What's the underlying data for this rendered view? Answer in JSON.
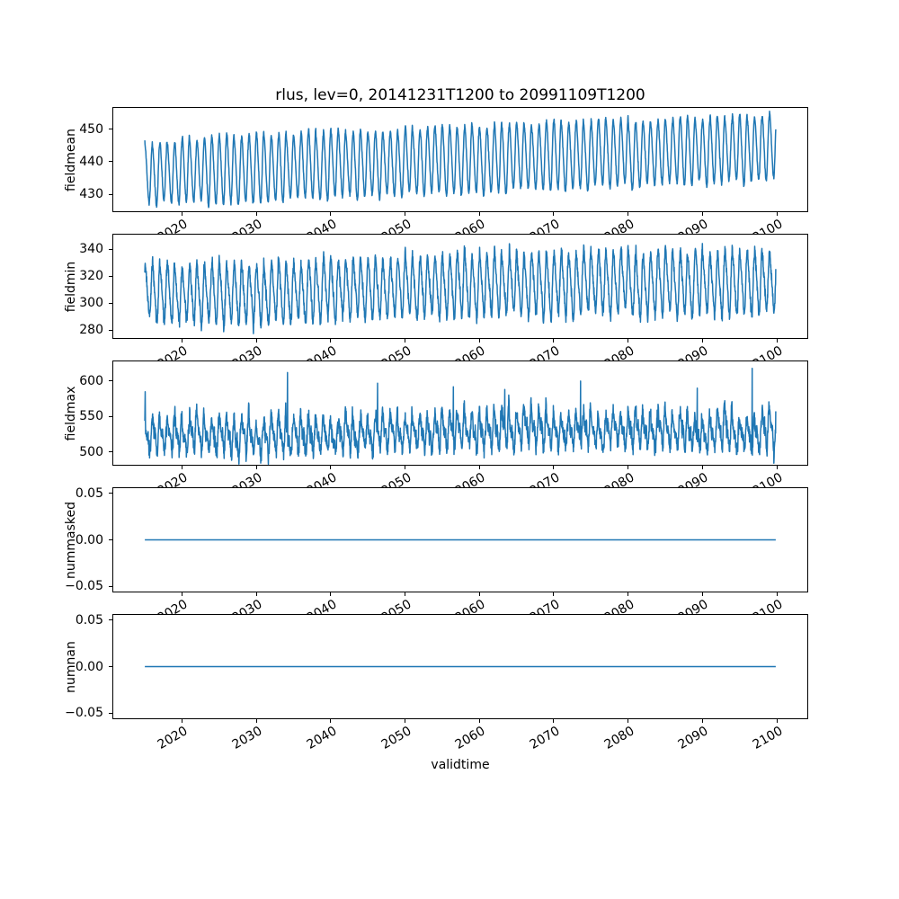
{
  "figure": {
    "title": "rlus, lev=0, 20141231T1200 to 20991109T1200",
    "xlabel": "validtime",
    "background": "#ffffff",
    "line_color": "#1f77b4",
    "axis_color": "#000000",
    "xlim": [
      2010.754,
      2104.103
    ],
    "xtick_values": [
      2020,
      2030,
      2040,
      2050,
      2060,
      2070,
      2080,
      2090,
      2100
    ],
    "xtick_labels": [
      "2020",
      "2030",
      "2040",
      "2050",
      "2060",
      "2070",
      "2080",
      "2090",
      "2100"
    ],
    "xtick_rotation_deg": 30
  },
  "chart_data": [
    {
      "type": "line",
      "name": "fieldmean",
      "ylabel": "fieldmean",
      "ylim": [
        424.8,
        456.5
      ],
      "ytick_values": [
        430,
        440,
        450
      ],
      "ytick_labels": [
        "430",
        "440",
        "450"
      ],
      "x_start": 2014.997,
      "x_end": 2099.86,
      "points_per_year": 36,
      "seed": 11,
      "phase": 1.3,
      "harmonic": 0.1,
      "noise": 0.35,
      "peak_jitter": 2.6,
      "trough_jitter": 2.4,
      "envelope": {
        "years": [
          2015,
          2025,
          2035,
          2045,
          2055,
          2065,
          2075,
          2085,
          2100
        ],
        "peak": [
          447.0,
          448.0,
          449.5,
          450.5,
          451.5,
          452.5,
          453.0,
          454.0,
          455.0
        ],
        "trough": [
          426.5,
          426.5,
          427.5,
          428.5,
          429.5,
          430.0,
          431.0,
          432.0,
          433.5
        ]
      },
      "spikes": []
    },
    {
      "type": "line",
      "name": "fieldmin",
      "ylabel": "fieldmin",
      "ylim": [
        274.2,
        350.9
      ],
      "ytick_values": [
        280,
        300,
        320,
        340
      ],
      "ytick_labels": [
        "280",
        "300",
        "320",
        "340"
      ],
      "x_start": 2014.997,
      "x_end": 2099.86,
      "points_per_year": 36,
      "seed": 23,
      "phase": 1.1,
      "harmonic": 0.18,
      "noise": 2.2,
      "peak_jitter": 8,
      "trough_jitter": 7,
      "envelope": {
        "years": [
          2015,
          2030,
          2040,
          2050,
          2060,
          2075,
          2090,
          2100
        ],
        "peak": [
          331,
          332,
          335,
          337,
          339,
          341,
          342,
          340
        ],
        "trough": [
          285,
          282,
          286,
          287,
          288,
          289,
          289,
          290
        ]
      },
      "spikes": [
        [
          2029.6,
          277.5
        ]
      ]
    },
    {
      "type": "line",
      "name": "fieldmax",
      "ylabel": "fieldmax",
      "ylim": [
        481.7,
        627.8
      ],
      "ytick_values": [
        500,
        550,
        600
      ],
      "ytick_labels": [
        "500",
        "550",
        "600"
      ],
      "x_start": 2014.997,
      "x_end": 2099.86,
      "points_per_year": 36,
      "seed": 37,
      "phase": 1.2,
      "harmonic": 0.35,
      "noise": 6,
      "peak_jitter": 24,
      "trough_jitter": 8,
      "envelope": {
        "years": [
          2015,
          2035,
          2050,
          2065,
          2080,
          2100
        ],
        "peak": [
          552,
          550,
          556,
          560,
          562,
          558
        ],
        "trough": [
          497,
          494,
          499,
          502,
          503,
          497
        ]
      },
      "spikes": [
        [
          2015.05,
          585
        ],
        [
          2034.2,
          612
        ],
        [
          2046.3,
          597
        ],
        [
          2056.5,
          592
        ],
        [
          2063.4,
          588
        ],
        [
          2073.6,
          600
        ],
        [
          2089.3,
          590
        ],
        [
          2096.7,
          618
        ]
      ]
    },
    {
      "type": "line",
      "name": "nummasked",
      "ylabel": "nummasked",
      "ylim": [
        -0.0555,
        0.0555
      ],
      "ytick_values": [
        -0.05,
        0.0,
        0.05
      ],
      "ytick_labels": [
        "−0.05",
        "0.00",
        "0.05"
      ],
      "x_start": 2014.997,
      "x_end": 2099.86,
      "constant": 0
    },
    {
      "type": "line",
      "name": "numnan",
      "ylabel": "numnan",
      "ylim": [
        -0.0555,
        0.0555
      ],
      "ytick_values": [
        -0.05,
        0.0,
        0.05
      ],
      "ytick_labels": [
        "−0.05",
        "0.00",
        "0.05"
      ],
      "x_start": 2014.997,
      "x_end": 2099.86,
      "constant": 0
    }
  ]
}
